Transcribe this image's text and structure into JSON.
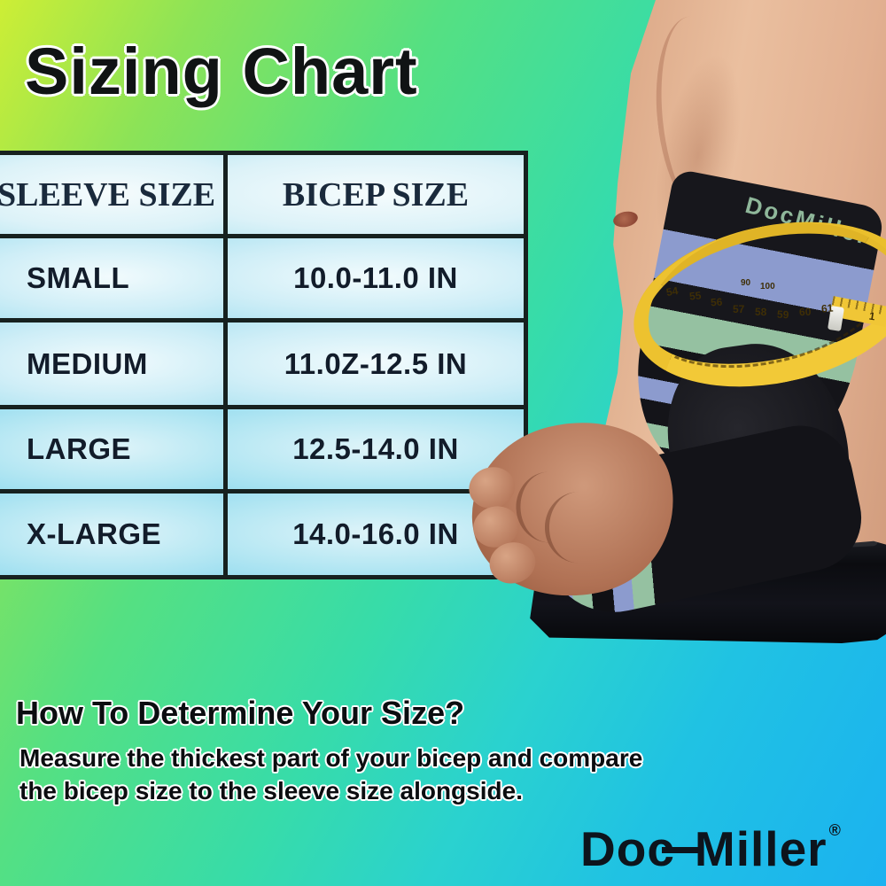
{
  "page": {
    "title": "Sizing Chart"
  },
  "table": {
    "headers": {
      "sleeve": "SLEEVE SIZE",
      "bicep": "BICEP SIZE"
    },
    "rows": [
      {
        "sleeve": "SMALL",
        "bicep": "10.0-11.0 IN"
      },
      {
        "sleeve": "MEDIUM",
        "bicep": "11.0Z-12.5 IN"
      },
      {
        "sleeve": "LARGE",
        "bicep": "12.5-14.0 IN"
      },
      {
        "sleeve": "X-LARGE",
        "bicep": "14.0-16.0 IN"
      }
    ]
  },
  "how_to": {
    "heading": "How To Determine Your Size?",
    "body": "Measure the thickest part of your bicep and compare the bicep size to the sleeve size alongside."
  },
  "brand": {
    "part1": "Doc",
    "part2": "Miller",
    "registered": "®"
  },
  "photo": {
    "sleeve_logo": "DocMiller",
    "tape_scale_lower": [
      "54",
      "55",
      "56",
      "57",
      "58",
      "59",
      "60",
      "61"
    ],
    "tape_scale_upper": [
      "90",
      "100"
    ],
    "tape_end_mark": "1"
  },
  "colors": {
    "background_gradient": [
      "#cdee35",
      "#8ce357",
      "#55e082",
      "#2ad2cf",
      "#1bb2f0"
    ],
    "table_border": "#16211f",
    "table_cell": "#cfeef7",
    "sleeve_black": "#15151a",
    "sleeve_blue": "#8c9bce",
    "sleeve_green": "#95c1a1",
    "tape_yellow": "#eec22f",
    "skin": "#e0ac8e",
    "text_dark": "#101314"
  },
  "chart_data": {
    "type": "table",
    "title": "Sizing Chart",
    "columns": [
      "SLEEVE SIZE",
      "BICEP SIZE"
    ],
    "rows": [
      [
        "SMALL",
        "10.0-11.0 IN"
      ],
      [
        "MEDIUM",
        "11.0Z-12.5 IN"
      ],
      [
        "LARGE",
        "12.5-14.0 IN"
      ],
      [
        "X-LARGE",
        "14.0-16.0 IN"
      ]
    ]
  }
}
